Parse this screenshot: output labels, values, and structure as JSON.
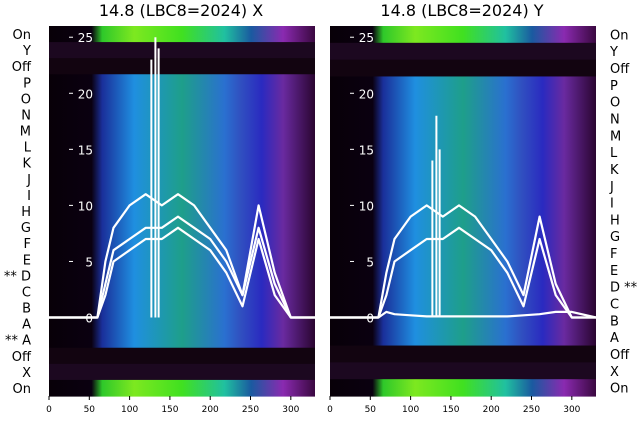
{
  "chart_data": [
    {
      "type": "heatmap",
      "title": "14.8 (LBC8=2024) X",
      "xlabel": "",
      "ylabel": "",
      "xlim": [
        0,
        330
      ],
      "ylim": [
        -7,
        26
      ],
      "x_ticks": [
        0,
        50,
        100,
        150,
        200,
        250,
        300
      ],
      "y_ticks": [
        0,
        5,
        10,
        15,
        20,
        25
      ],
      "row_labels": [
        "On",
        "Y",
        "Off",
        "P",
        "O",
        "N",
        "M",
        "L",
        "K",
        "J",
        "I",
        "H",
        "G",
        "F",
        "E",
        "** D",
        "C",
        "B",
        "A",
        "** A",
        "Off",
        "X",
        "On"
      ],
      "label_side": "left",
      "series": [
        {
          "x": [
            0,
            60,
            70,
            80,
            100,
            120,
            140,
            160,
            180,
            200,
            220,
            240,
            260,
            280,
            300,
            330
          ],
          "values": [
            0,
            0,
            5,
            8,
            10,
            11,
            10,
            11,
            10,
            8,
            6,
            2,
            10,
            4,
            0,
            0
          ]
        },
        {
          "x": [
            0,
            60,
            70,
            80,
            100,
            120,
            140,
            160,
            180,
            200,
            220,
            240,
            260,
            280,
            300,
            330
          ],
          "values": [
            0,
            0,
            3,
            6,
            7,
            8,
            8,
            9,
            8,
            7,
            5,
            2,
            8,
            3,
            0,
            0
          ]
        },
        {
          "x": [
            0,
            60,
            70,
            80,
            100,
            120,
            140,
            160,
            180,
            200,
            220,
            240,
            260,
            280,
            300,
            330
          ],
          "values": [
            0,
            0,
            2,
            5,
            6,
            7,
            7,
            8,
            7,
            6,
            4,
            1,
            7,
            2,
            0,
            0
          ]
        }
      ],
      "spikes": [
        {
          "x": 127,
          "value": 23
        },
        {
          "x": 132,
          "value": 25
        },
        {
          "x": 136,
          "value": 24
        }
      ]
    },
    {
      "type": "heatmap",
      "title": "14.8 (LBC8=2024) Y",
      "xlabel": "",
      "ylabel": "",
      "xlim": [
        0,
        330
      ],
      "ylim": [
        -7,
        26
      ],
      "x_ticks": [
        0,
        50,
        100,
        150,
        200,
        250,
        300
      ],
      "y_ticks": [
        0,
        5,
        10,
        15,
        20,
        25
      ],
      "row_labels": [
        "On",
        "Y",
        "Off",
        "P",
        "O",
        "N",
        "M",
        "L",
        "K",
        "J",
        "I",
        "H",
        "G",
        "F",
        "E",
        "D **",
        "C",
        "B",
        "A",
        "Off",
        "X",
        "On"
      ],
      "label_side": "right",
      "series": [
        {
          "x": [
            0,
            60,
            70,
            80,
            100,
            120,
            140,
            160,
            180,
            200,
            220,
            240,
            260,
            280,
            300,
            330
          ],
          "values": [
            0,
            0,
            4,
            7,
            9,
            10,
            9,
            10,
            9,
            7,
            5,
            2,
            9,
            3,
            0,
            0
          ]
        },
        {
          "x": [
            0,
            60,
            70,
            80,
            100,
            120,
            140,
            160,
            180,
            200,
            220,
            240,
            260,
            280,
            300,
            330
          ],
          "values": [
            0,
            0,
            2,
            5,
            6,
            7,
            7,
            8,
            7,
            6,
            4,
            1,
            7,
            2,
            0,
            0
          ]
        },
        {
          "x": [
            0,
            60,
            70,
            80,
            100,
            120,
            140,
            160,
            180,
            200,
            220,
            240,
            260,
            280,
            300,
            330
          ],
          "values": [
            0,
            0,
            0.5,
            0.3,
            0.2,
            0.1,
            0.1,
            0.1,
            0.1,
            0.1,
            0.1,
            0.2,
            0.3,
            0.5,
            0.5,
            0
          ]
        }
      ],
      "spikes": [
        {
          "x": 127,
          "value": 14
        },
        {
          "x": 132,
          "value": 18
        },
        {
          "x": 136,
          "value": 15
        }
      ]
    }
  ]
}
